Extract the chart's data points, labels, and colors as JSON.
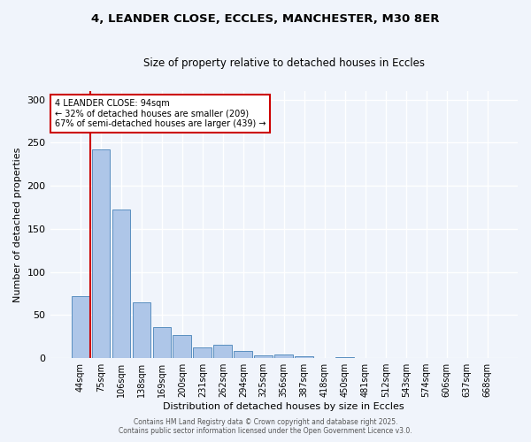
{
  "title_line1": "4, LEANDER CLOSE, ECCLES, MANCHESTER, M30 8ER",
  "title_line2": "Size of property relative to detached houses in Eccles",
  "xlabel": "Distribution of detached houses by size in Eccles",
  "ylabel": "Number of detached properties",
  "bar_labels": [
    "44sqm",
    "75sqm",
    "106sqm",
    "138sqm",
    "169sqm",
    "200sqm",
    "231sqm",
    "262sqm",
    "294sqm",
    "325sqm",
    "356sqm",
    "387sqm",
    "418sqm",
    "450sqm",
    "481sqm",
    "512sqm",
    "543sqm",
    "574sqm",
    "606sqm",
    "637sqm",
    "668sqm"
  ],
  "bar_values": [
    72,
    242,
    172,
    65,
    36,
    27,
    13,
    16,
    8,
    3,
    4,
    2,
    0,
    1,
    0,
    0,
    0,
    0,
    0,
    0,
    0
  ],
  "bar_color": "#aec6e8",
  "bar_edgecolor": "#5a8fc0",
  "background_color": "#f0f4fb",
  "grid_color": "#ffffff",
  "vline_x": 0.5,
  "vline_color": "#cc0000",
  "annotation_text": "4 LEANDER CLOSE: 94sqm\n← 32% of detached houses are smaller (209)\n67% of semi-detached houses are larger (439) →",
  "annotation_box_color": "#ffffff",
  "annotation_box_edgecolor": "#cc0000",
  "ylim": [
    0,
    310
  ],
  "yticks": [
    0,
    50,
    100,
    150,
    200,
    250,
    300
  ],
  "footer_line1": "Contains HM Land Registry data © Crown copyright and database right 2025.",
  "footer_line2": "Contains public sector information licensed under the Open Government Licence v3.0."
}
